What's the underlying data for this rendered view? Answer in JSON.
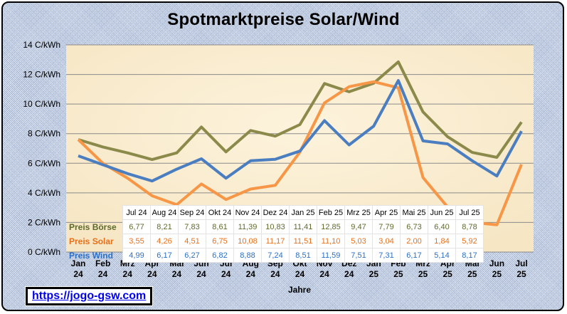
{
  "link": "https://jogo-gsw.com",
  "colors": {
    "boerse": "#8b8a4b",
    "solar": "#f79646",
    "wind": "#4a7ec0",
    "boerse_text": "#5d6b2a",
    "solar_text": "#e8701a",
    "wind_text": "#2a70c8"
  },
  "chart_data": {
    "type": "line",
    "title": "Spotmarktpreise  Solar/Wind",
    "xlabel": "Jahre",
    "ylabel": "",
    "ylim": [
      0,
      14
    ],
    "yticks": [
      "0 C/kWh",
      "2 C/kWh",
      "4 C/kWh",
      "6 C/kWh",
      "8 C/kWh",
      "10 C/kWh",
      "12 C/kWh",
      "14 C/kWh"
    ],
    "grid": true,
    "categories": [
      [
        "Jan",
        "24"
      ],
      [
        "Feb",
        "24"
      ],
      [
        "Mrz",
        "24"
      ],
      [
        "Apr",
        "24"
      ],
      [
        "Mai",
        "24"
      ],
      [
        "Jun",
        "24"
      ],
      [
        "Jul",
        "24"
      ],
      [
        "Aug",
        "24"
      ],
      [
        "Sep",
        "24"
      ],
      [
        "Okt",
        "24"
      ],
      [
        "Nov",
        "24"
      ],
      [
        "Dez",
        "24"
      ],
      [
        "Jan",
        "25"
      ],
      [
        "Feb",
        "25"
      ],
      [
        "Mrz",
        "25"
      ],
      [
        "Apr",
        "25"
      ],
      [
        "Mai",
        "25"
      ],
      [
        "Jun",
        "25"
      ],
      [
        "Jul",
        "25"
      ]
    ],
    "series": [
      {
        "name": "Preis Börse",
        "key": "boerse",
        "values": [
          7.6,
          7.1,
          6.7,
          6.25,
          6.7,
          8.45,
          6.77,
          8.21,
          7.83,
          8.61,
          11.39,
          10.83,
          11.41,
          12.85,
          9.47,
          7.79,
          6.73,
          6.4,
          8.78
        ]
      },
      {
        "name": "Preis Solar",
        "key": "solar",
        "values": [
          7.6,
          6.0,
          5.0,
          3.8,
          3.2,
          4.6,
          3.55,
          4.26,
          4.51,
          6.75,
          10.08,
          11.17,
          11.51,
          11.1,
          5.03,
          3.04,
          2.0,
          1.84,
          5.92
        ]
      },
      {
        "name": "Preis Wind",
        "key": "wind",
        "values": [
          6.5,
          5.9,
          5.3,
          4.8,
          5.6,
          6.3,
          4.99,
          6.17,
          6.27,
          6.82,
          8.88,
          7.24,
          8.51,
          11.59,
          7.51,
          7.31,
          6.17,
          5.14,
          8.17
        ]
      }
    ],
    "table": {
      "months": [
        "Jul 24",
        "Aug 24",
        "Sep 24",
        "Okt 24",
        "Nov 24",
        "Dez 24",
        "Jan 25",
        "Feb 25",
        "Mrz 25",
        "Apr 25",
        "Mai 25",
        "Jun 25",
        "Jul 25"
      ],
      "rows": [
        {
          "label": "Preis Börse",
          "key": "boerse",
          "values": [
            "6,77",
            "8,21",
            "7,83",
            "8,61",
            "11,39",
            "10,83",
            "11,41",
            "12,85",
            "9,47",
            "7,79",
            "6,73",
            "6,40",
            "8,78"
          ]
        },
        {
          "label": "Preis Solar",
          "key": "solar",
          "values": [
            "3,55",
            "4,26",
            "4,51",
            "6,75",
            "10,08",
            "11,17",
            "11,51",
            "11,10",
            "5,03",
            "3,04",
            "2,00",
            "1,84",
            "5,92"
          ]
        },
        {
          "label": "Preis Wind",
          "key": "wind",
          "values": [
            "4,99",
            "6,17",
            "6,27",
            "6,82",
            "8,88",
            "7,24",
            "8,51",
            "11,59",
            "7,51",
            "7,31",
            "6,17",
            "5,14",
            "8,17"
          ]
        }
      ]
    }
  }
}
